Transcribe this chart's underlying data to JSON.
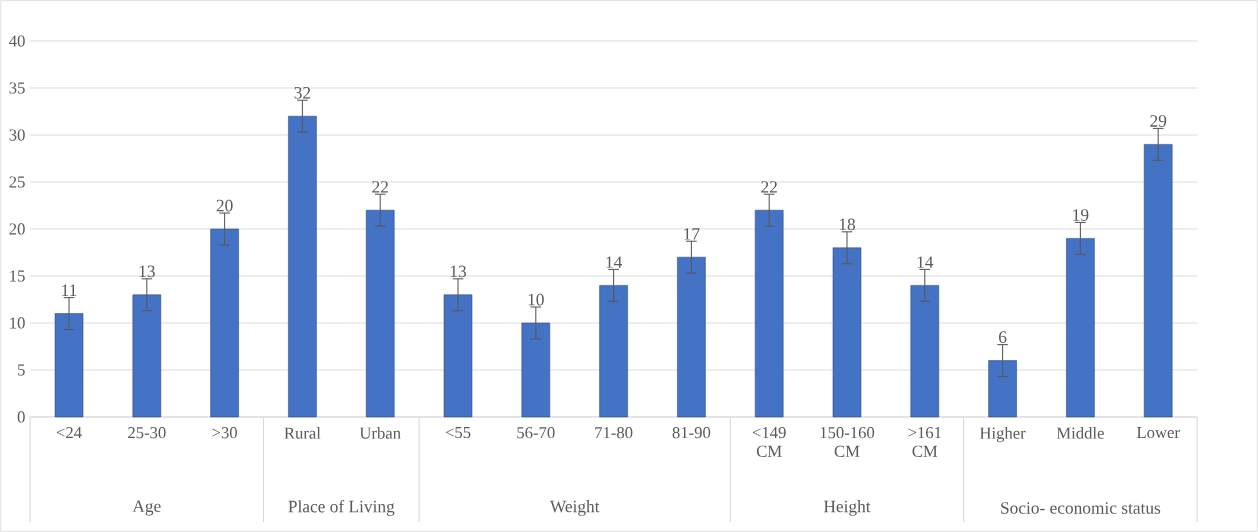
{
  "chart_data": {
    "type": "bar",
    "categories": [
      "<24",
      "25-30",
      ">30",
      "Rural",
      "Urban",
      "<55",
      "56-70",
      "71-80",
      "81-90",
      "<149 CM",
      "150-160 CM",
      ">161 CM",
      "Higher",
      "Middle",
      "Lower"
    ],
    "values": [
      11,
      13,
      20,
      32,
      22,
      13,
      10,
      14,
      17,
      22,
      18,
      14,
      6,
      19,
      29
    ],
    "errors": [
      1.7,
      1.7,
      1.7,
      1.7,
      1.7,
      1.7,
      1.7,
      1.7,
      1.7,
      1.7,
      1.7,
      1.7,
      1.7,
      1.7,
      1.7
    ],
    "color": "#4472c4",
    "ylim": [
      0,
      40
    ],
    "yticks": [
      0,
      5,
      10,
      15,
      20,
      25,
      30,
      35,
      40
    ],
    "grid": "y",
    "data_labels": true,
    "annotations": [
      "Age",
      "Place of Living",
      "Weight",
      "Height",
      "Socio- economic status"
    ]
  }
}
